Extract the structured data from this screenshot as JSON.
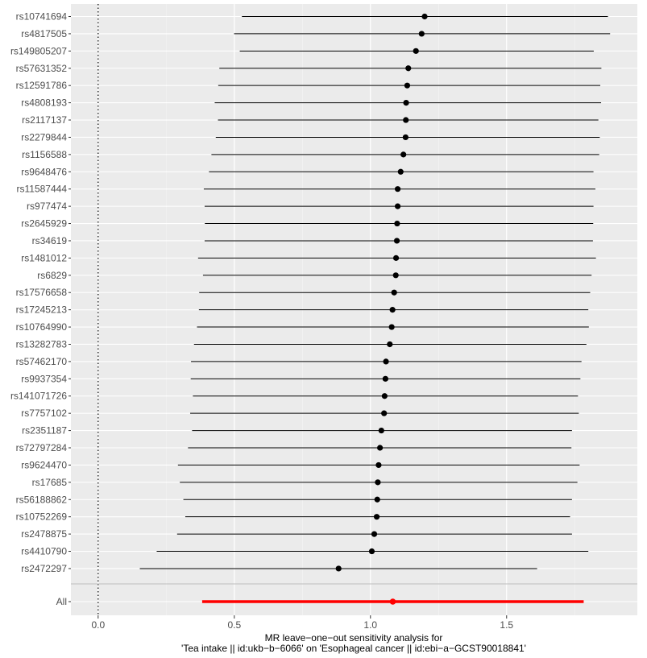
{
  "chart_data": {
    "type": "forest",
    "xlabel_lines": [
      "MR leave−one−out sensitivity analysis for",
      "'Tea intake || id:ukb−b−6066' on 'Esophageal cancer || id:ebi−a−GCST90018841'"
    ],
    "xlim": [
      -0.1,
      1.98
    ],
    "x_ticks": [
      0.0,
      0.5,
      1.0,
      1.5
    ],
    "x_tick_labels": [
      "0.0",
      "0.5",
      "1.0",
      "1.5"
    ],
    "reference_line_x": 0,
    "grid": true,
    "snps": [
      {
        "label": "rs10741694",
        "b": 1.199,
        "lo": 0.528,
        "hi": 1.872
      },
      {
        "label": "rs4817505",
        "b": 1.188,
        "lo": 0.499,
        "hi": 1.88
      },
      {
        "label": "rs149805207",
        "b": 1.167,
        "lo": 0.52,
        "hi": 1.82
      },
      {
        "label": "rs57631352",
        "b": 1.139,
        "lo": 0.445,
        "hi": 1.848
      },
      {
        "label": "rs12591786",
        "b": 1.135,
        "lo": 0.441,
        "hi": 1.844
      },
      {
        "label": "rs4808193",
        "b": 1.131,
        "lo": 0.428,
        "hi": 1.847
      },
      {
        "label": "rs2117137",
        "b": 1.13,
        "lo": 0.44,
        "hi": 1.837
      },
      {
        "label": "rs2279844",
        "b": 1.129,
        "lo": 0.432,
        "hi": 1.842
      },
      {
        "label": "rs1156588",
        "b": 1.121,
        "lo": 0.416,
        "hi": 1.84
      },
      {
        "label": "rs9648476",
        "b": 1.111,
        "lo": 0.407,
        "hi": 1.819
      },
      {
        "label": "rs11587444",
        "b": 1.1,
        "lo": 0.388,
        "hi": 1.826
      },
      {
        "label": "rs977474",
        "b": 1.1,
        "lo": 0.391,
        "hi": 1.819
      },
      {
        "label": "rs2645929",
        "b": 1.098,
        "lo": 0.392,
        "hi": 1.818
      },
      {
        "label": "rs34619",
        "b": 1.097,
        "lo": 0.391,
        "hi": 1.817
      },
      {
        "label": "rs1481012",
        "b": 1.094,
        "lo": 0.367,
        "hi": 1.828
      },
      {
        "label": "rs6829",
        "b": 1.093,
        "lo": 0.385,
        "hi": 1.812
      },
      {
        "label": "rs17576658",
        "b": 1.087,
        "lo": 0.371,
        "hi": 1.807
      },
      {
        "label": "rs17245213",
        "b": 1.081,
        "lo": 0.37,
        "hi": 1.8
      },
      {
        "label": "rs10764990",
        "b": 1.078,
        "lo": 0.363,
        "hi": 1.802
      },
      {
        "label": "rs13282783",
        "b": 1.071,
        "lo": 0.352,
        "hi": 1.793
      },
      {
        "label": "rs57462170",
        "b": 1.057,
        "lo": 0.341,
        "hi": 1.775
      },
      {
        "label": "rs9937354",
        "b": 1.055,
        "lo": 0.34,
        "hi": 1.771
      },
      {
        "label": "rs141071726",
        "b": 1.052,
        "lo": 0.348,
        "hi": 1.762
      },
      {
        "label": "rs7757102",
        "b": 1.05,
        "lo": 0.338,
        "hi": 1.765
      },
      {
        "label": "rs2351187",
        "b": 1.04,
        "lo": 0.345,
        "hi": 1.74
      },
      {
        "label": "rs72797284",
        "b": 1.035,
        "lo": 0.33,
        "hi": 1.738
      },
      {
        "label": "rs9624470",
        "b": 1.03,
        "lo": 0.293,
        "hi": 1.768
      },
      {
        "label": "rs17685",
        "b": 1.027,
        "lo": 0.3,
        "hi": 1.76
      },
      {
        "label": "rs56188862",
        "b": 1.025,
        "lo": 0.313,
        "hi": 1.74
      },
      {
        "label": "rs10752269",
        "b": 1.023,
        "lo": 0.32,
        "hi": 1.733
      },
      {
        "label": "rs2478875",
        "b": 1.014,
        "lo": 0.29,
        "hi": 1.74
      },
      {
        "label": "rs4410790",
        "b": 1.005,
        "lo": 0.215,
        "hi": 1.8
      },
      {
        "label": "rs2472297",
        "b": 0.883,
        "lo": 0.153,
        "hi": 1.612
      }
    ],
    "all": {
      "label": "All",
      "b": 1.082,
      "lo": 0.382,
      "hi": 1.783
    },
    "colors": {
      "panel": "#ebebeb",
      "grid_major": "#ffffff",
      "grid_minor": "#f5f5f5",
      "snp": "#000000",
      "all": "#ff0000",
      "separator": "#bdbdbd",
      "tick_text": "#4d4d4d"
    }
  }
}
